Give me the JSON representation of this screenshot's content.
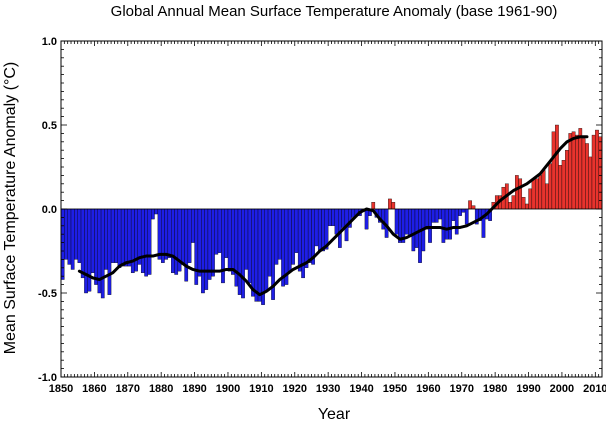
{
  "chart_data": {
    "type": "bar",
    "title": "Global Annual Mean Surface Temperature Anomaly (base 1961-90)",
    "xlabel": "Year",
    "ylabel": "Mean Surface Temperature Anomaly (°C)",
    "xlim": [
      1850,
      2012
    ],
    "ylim": [
      -1.0,
      1.0
    ],
    "x_ticks": [
      1850,
      1860,
      1870,
      1880,
      1890,
      1900,
      1910,
      1920,
      1930,
      1940,
      1950,
      1960,
      1970,
      1980,
      1990,
      2000,
      2010
    ],
    "y_ticks": [
      -1.0,
      -0.5,
      0.0,
      0.5,
      1.0
    ],
    "y_tick_labels": [
      "-1.0",
      "-0.5",
      "0.0",
      "0.5",
      "1.0"
    ],
    "colors": {
      "positive": "#e8332d",
      "negative": "#1e1ee6",
      "smooth": "#000000"
    },
    "series": [
      {
        "x_start": 1850,
        "values": [
          -0.42,
          -0.3,
          -0.33,
          -0.36,
          -0.3,
          -0.32,
          -0.41,
          -0.5,
          -0.49,
          -0.38,
          -0.45,
          -0.5,
          -0.53,
          -0.36,
          -0.51,
          -0.32,
          -0.32,
          -0.35,
          -0.34,
          -0.34,
          -0.34,
          -0.38,
          -0.37,
          -0.33,
          -0.38,
          -0.4,
          -0.39,
          -0.06,
          -0.03,
          -0.3,
          -0.32,
          -0.3,
          -0.29,
          -0.38,
          -0.39,
          -0.37,
          -0.33,
          -0.43,
          -0.32,
          -0.2,
          -0.45,
          -0.4,
          -0.5,
          -0.48,
          -0.42,
          -0.4,
          -0.27,
          -0.26,
          -0.44,
          -0.29,
          -0.37,
          -0.39,
          -0.46,
          -0.51,
          -0.53,
          -0.36,
          -0.44,
          -0.52,
          -0.55,
          -0.55,
          -0.57,
          -0.49,
          -0.4,
          -0.54,
          -0.33,
          -0.3,
          -0.46,
          -0.45,
          -0.37,
          -0.33,
          -0.26,
          -0.37,
          -0.41,
          -0.35,
          -0.32,
          -0.33,
          -0.22,
          -0.25,
          -0.25,
          -0.24,
          -0.1,
          -0.1,
          -0.15,
          -0.23,
          -0.11,
          -0.19,
          -0.11,
          -0.05,
          -0.04,
          -0.04,
          -0.01,
          -0.12,
          -0.04,
          0.04,
          -0.05,
          -0.08,
          -0.12,
          -0.17,
          0.06,
          0.04,
          -0.15,
          -0.2,
          -0.2,
          -0.15,
          -0.16,
          -0.25,
          -0.23,
          -0.32,
          -0.25,
          -0.12,
          -0.2,
          -0.08,
          -0.08,
          -0.06,
          -0.2,
          -0.18,
          -0.18,
          -0.07,
          -0.15,
          -0.04,
          -0.02,
          -0.09,
          0.05,
          0.02,
          -0.09,
          -0.07,
          -0.17,
          -0.06,
          -0.07,
          0.04,
          0.08,
          0.08,
          0.13,
          0.15,
          0.04,
          0.08,
          0.2,
          0.18,
          0.07,
          0.03,
          0.12,
          0.18,
          0.18,
          0.2,
          0.23,
          0.15,
          0.27,
          0.46,
          0.5,
          0.26,
          0.29,
          0.35,
          0.45,
          0.46,
          0.44,
          0.48,
          0.42,
          0.39,
          0.31,
          0.44,
          0.47,
          0.43
        ]
      },
      {
        "smoothed": [
          [
            1855,
            -0.37
          ],
          [
            1857,
            -0.39
          ],
          [
            1859,
            -0.41
          ],
          [
            1861,
            -0.42
          ],
          [
            1863,
            -0.4
          ],
          [
            1865,
            -0.38
          ],
          [
            1867,
            -0.34
          ],
          [
            1869,
            -0.32
          ],
          [
            1871,
            -0.31
          ],
          [
            1873,
            -0.29
          ],
          [
            1875,
            -0.28
          ],
          [
            1877,
            -0.28
          ],
          [
            1879,
            -0.27
          ],
          [
            1881,
            -0.27
          ],
          [
            1883,
            -0.28
          ],
          [
            1885,
            -0.31
          ],
          [
            1887,
            -0.34
          ],
          [
            1889,
            -0.36
          ],
          [
            1891,
            -0.37
          ],
          [
            1893,
            -0.37
          ],
          [
            1895,
            -0.37
          ],
          [
            1897,
            -0.37
          ],
          [
            1899,
            -0.36
          ],
          [
            1901,
            -0.36
          ],
          [
            1903,
            -0.39
          ],
          [
            1905,
            -0.43
          ],
          [
            1907,
            -0.48
          ],
          [
            1909,
            -0.51
          ],
          [
            1911,
            -0.49
          ],
          [
            1913,
            -0.46
          ],
          [
            1915,
            -0.42
          ],
          [
            1917,
            -0.39
          ],
          [
            1919,
            -0.36
          ],
          [
            1921,
            -0.34
          ],
          [
            1923,
            -0.32
          ],
          [
            1925,
            -0.29
          ],
          [
            1927,
            -0.25
          ],
          [
            1929,
            -0.22
          ],
          [
            1931,
            -0.18
          ],
          [
            1933,
            -0.14
          ],
          [
            1935,
            -0.1
          ],
          [
            1937,
            -0.06
          ],
          [
            1939,
            -0.02
          ],
          [
            1941,
            0.0
          ],
          [
            1943,
            -0.01
          ],
          [
            1945,
            -0.06
          ],
          [
            1947,
            -0.1
          ],
          [
            1949,
            -0.15
          ],
          [
            1951,
            -0.18
          ],
          [
            1953,
            -0.17
          ],
          [
            1955,
            -0.15
          ],
          [
            1957,
            -0.13
          ],
          [
            1959,
            -0.11
          ],
          [
            1961,
            -0.11
          ],
          [
            1963,
            -0.11
          ],
          [
            1965,
            -0.12
          ],
          [
            1967,
            -0.11
          ],
          [
            1969,
            -0.11
          ],
          [
            1971,
            -0.1
          ],
          [
            1973,
            -0.08
          ],
          [
            1975,
            -0.06
          ],
          [
            1977,
            -0.03
          ],
          [
            1979,
            0.01
          ],
          [
            1981,
            0.05
          ],
          [
            1983,
            0.08
          ],
          [
            1985,
            0.11
          ],
          [
            1987,
            0.13
          ],
          [
            1989,
            0.15
          ],
          [
            1991,
            0.18
          ],
          [
            1993,
            0.21
          ],
          [
            1995,
            0.26
          ],
          [
            1997,
            0.31
          ],
          [
            1999,
            0.36
          ],
          [
            2001,
            0.4
          ],
          [
            2003,
            0.42
          ],
          [
            2005,
            0.43
          ],
          [
            2007,
            0.43
          ]
        ]
      }
    ]
  }
}
